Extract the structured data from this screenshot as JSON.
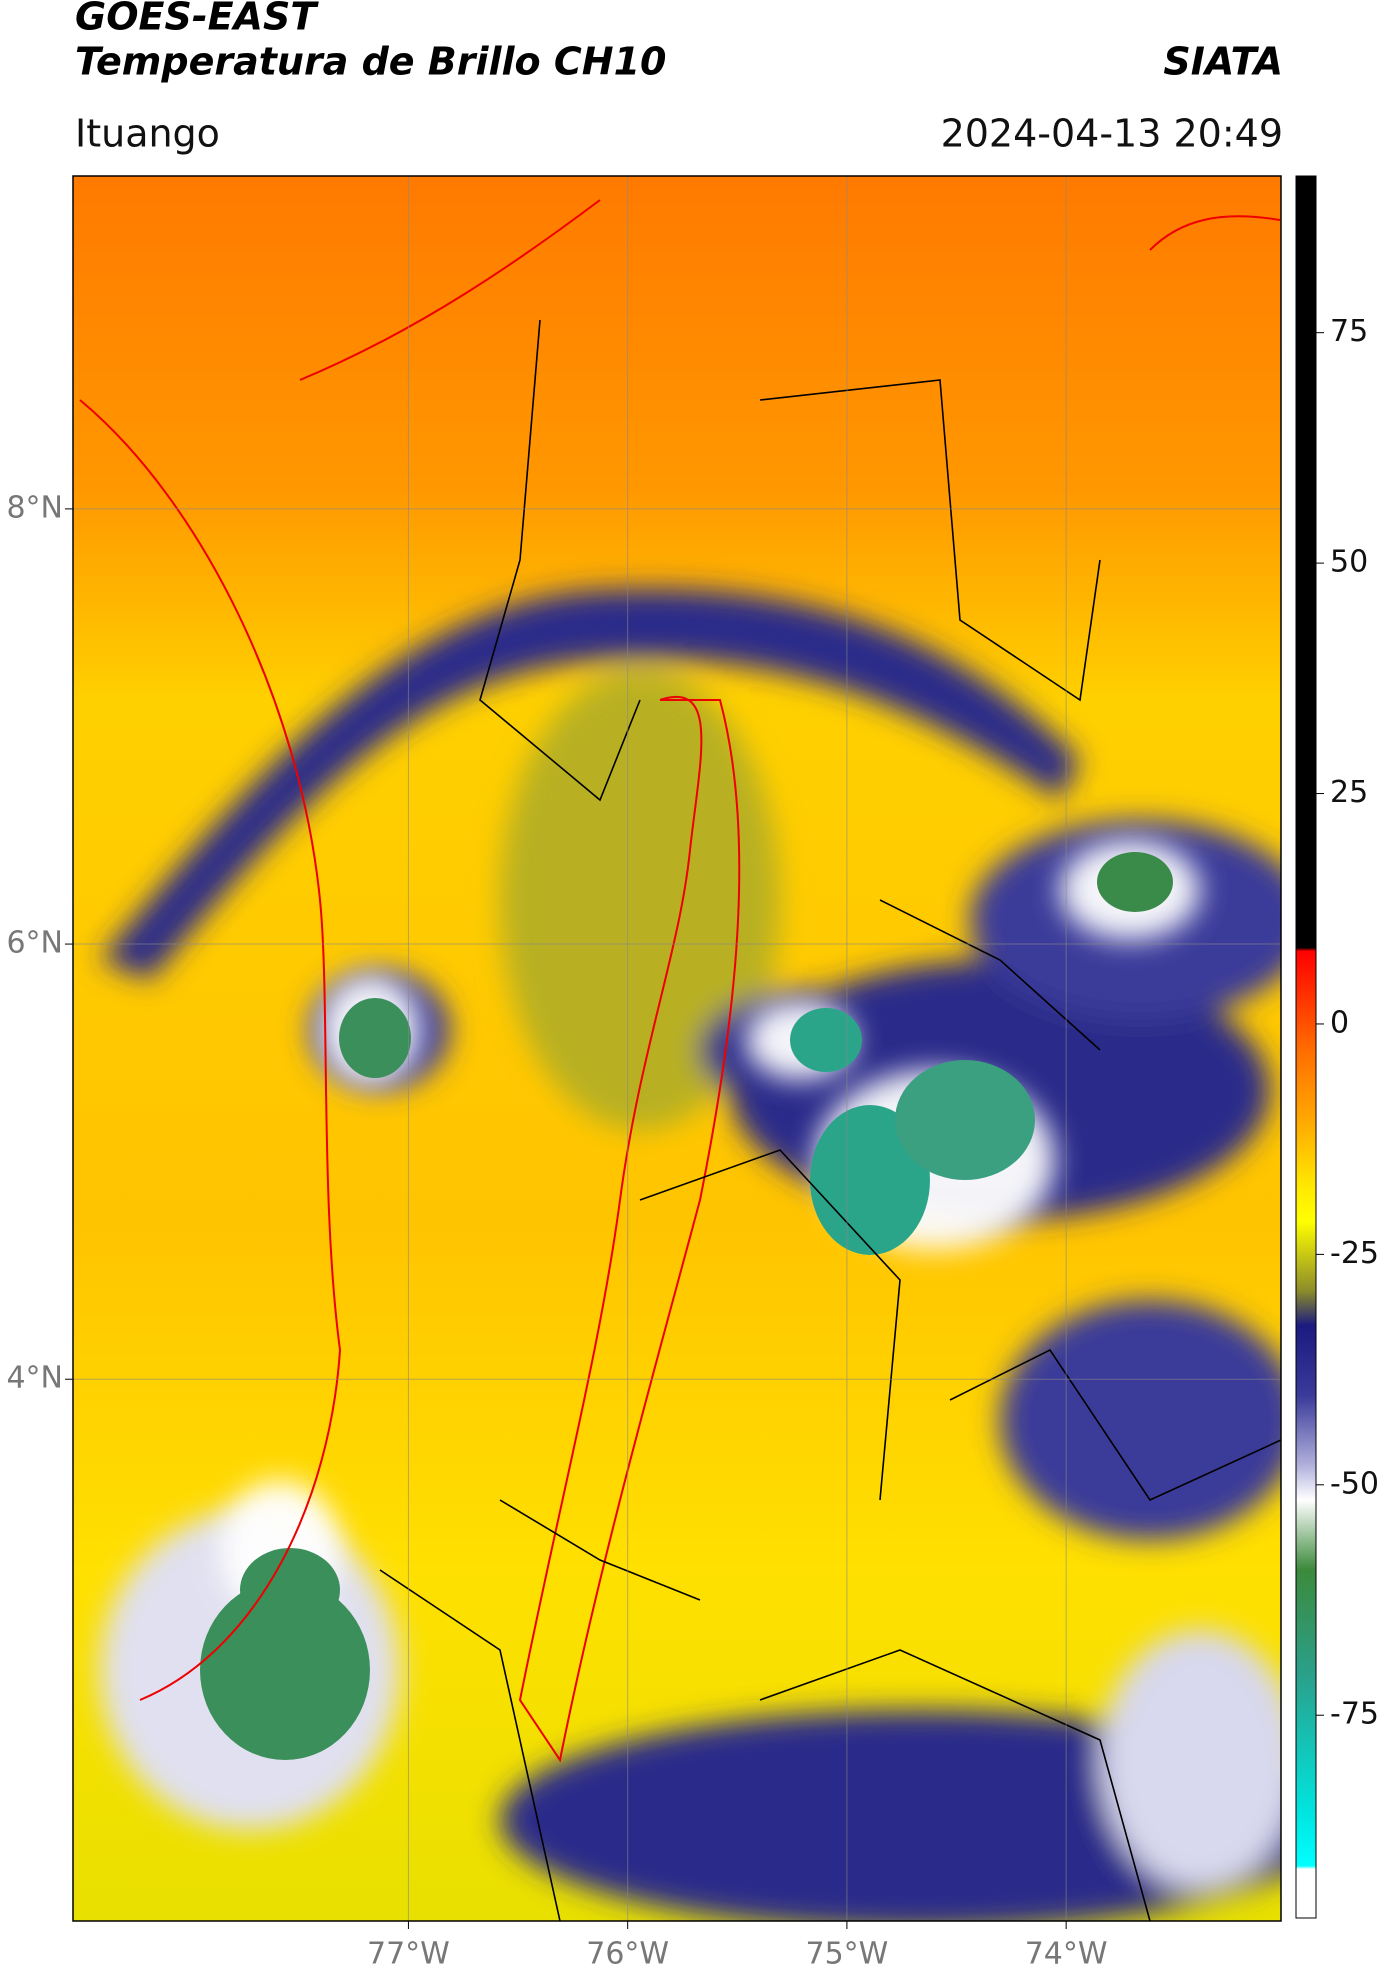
{
  "header": {
    "title": "GOES-EAST",
    "subtitle": "Temperatura de Brillo CH10",
    "source": "SIATA",
    "location": "Ituango",
    "datetime": "2024-04-13 20:49"
  },
  "map": {
    "xlim": [
      -78.53,
      -73.02
    ],
    "ylim": [
      1.51,
      9.53
    ],
    "xticks": [
      {
        "value": -77,
        "label": "77°W"
      },
      {
        "value": -76,
        "label": "76°W"
      },
      {
        "value": -75,
        "label": "75°W"
      },
      {
        "value": -74,
        "label": "74°W"
      }
    ],
    "yticks": [
      {
        "value": 8,
        "label": "8°N"
      },
      {
        "value": 6,
        "label": "6°N"
      },
      {
        "value": 4,
        "label": "4°N"
      }
    ],
    "grid": true
  },
  "colorbar": {
    "lim": [
      -97,
      92
    ],
    "ticks": [
      75,
      50,
      25,
      0,
      -25,
      -50,
      -75
    ]
  }
}
